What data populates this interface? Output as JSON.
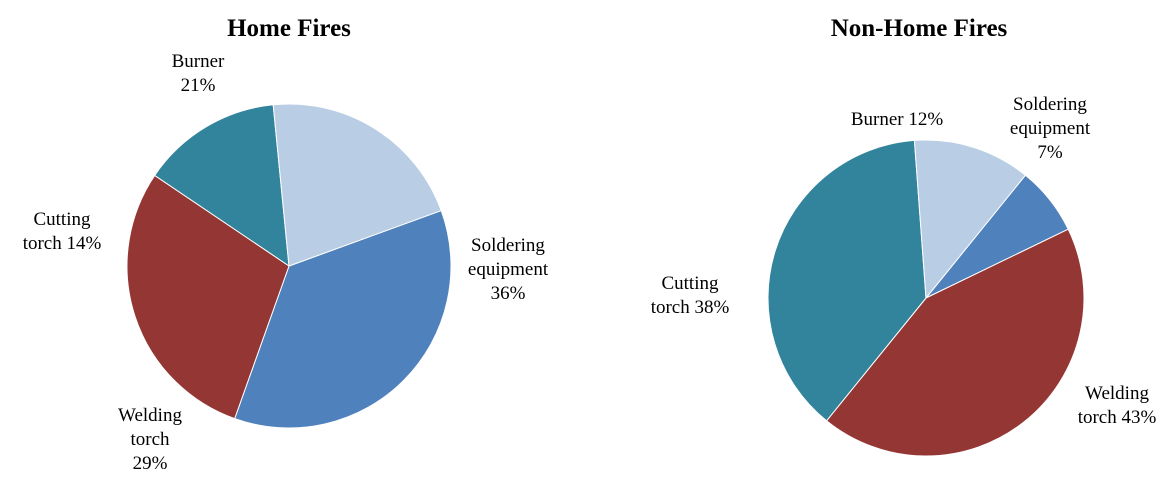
{
  "chart_data": [
    {
      "type": "pie",
      "title": "Home Fires",
      "slices": [
        {
          "name": "Soldering equipment",
          "value": 36,
          "label_lines": [
            "Soldering",
            "equipment",
            "36%"
          ],
          "color": "#4F81BD"
        },
        {
          "name": "Welding torch",
          "value": 29,
          "label_lines": [
            "Welding",
            "torch",
            "29%"
          ],
          "color": "#943634"
        },
        {
          "name": "Cutting torch",
          "value": 14,
          "label_lines": [
            "Cutting",
            "torch 14%"
          ],
          "color": "#31849B"
        },
        {
          "name": "Burner",
          "value": 21,
          "label_lines": [
            "Burner",
            "21%"
          ],
          "color": "#B9CDE5"
        }
      ]
    },
    {
      "type": "pie",
      "title": "Non-Home Fires",
      "slices": [
        {
          "name": "Soldering equipment",
          "value": 7,
          "label_lines": [
            "Soldering",
            "equipment",
            "7%"
          ],
          "color": "#4F81BD"
        },
        {
          "name": "Welding torch",
          "value": 43,
          "label_lines": [
            "Welding",
            "torch 43%"
          ],
          "color": "#943634"
        },
        {
          "name": "Cutting torch",
          "value": 38,
          "label_lines": [
            "Cutting",
            "torch 38%"
          ],
          "color": "#31849B"
        },
        {
          "name": "Burner",
          "value": 12,
          "label_lines": [
            "Burner  12%"
          ],
          "color": "#B9CDE5"
        }
      ]
    }
  ]
}
